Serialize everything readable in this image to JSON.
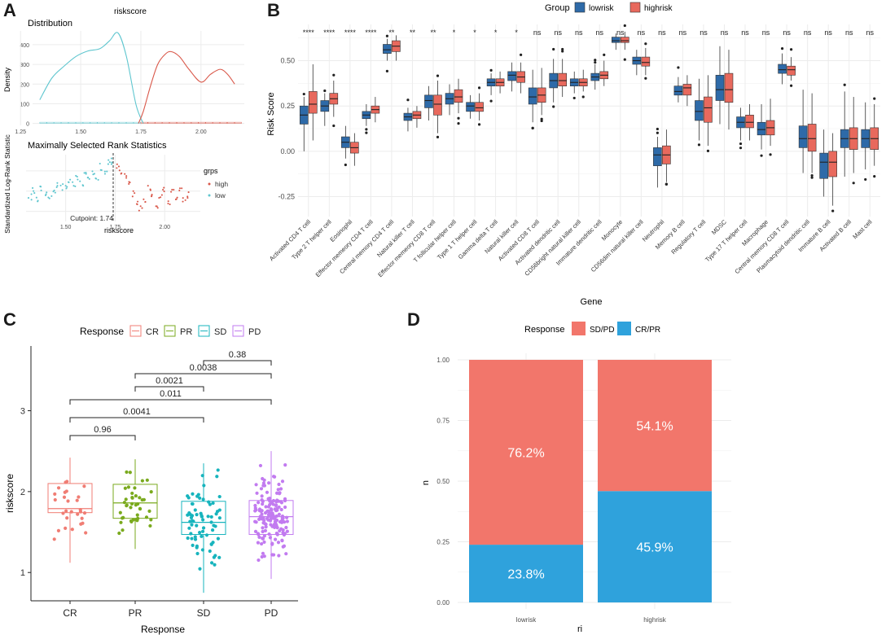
{
  "panels": {
    "a": "A",
    "b": "B",
    "c": "C",
    "d": "D"
  },
  "colors": {
    "low": "#2e6aa8",
    "high": "#e8695d",
    "dist_low": "#5fc6cf",
    "dist_high": "#d9584a",
    "cr": "#f07d74",
    "pr": "#7aaa1e",
    "sd": "#17b4bd",
    "pd": "#c27bf0",
    "sdpd": "#f2766b",
    "crpr": "#2fa2dc"
  },
  "chart_data": [
    {
      "id": "a_distribution",
      "type": "line",
      "title": "riskscore",
      "subtitle": "Distribution",
      "xlabel": "",
      "ylabel": "Density",
      "xlim": [
        1.3,
        2.18
      ],
      "ylim": [
        -10,
        470
      ],
      "xticks": [
        "1.25",
        "1.50",
        "1.75",
        "2.00"
      ],
      "xtick_values": [
        1.25,
        1.5,
        1.75,
        2.0
      ],
      "yticks": [
        "0",
        "100",
        "200",
        "300",
        "400"
      ],
      "ytick_values": [
        0,
        100,
        200,
        300,
        400
      ],
      "series": [
        {
          "name": "low",
          "x": [
            1.33,
            1.38,
            1.43,
            1.48,
            1.53,
            1.58,
            1.62,
            1.655,
            1.69,
            1.73,
            1.76
          ],
          "values": [
            120,
            230,
            290,
            340,
            368,
            380,
            420,
            460,
            340,
            95,
            0
          ]
        },
        {
          "name": "high",
          "x": [
            1.74,
            1.76,
            1.79,
            1.82,
            1.85,
            1.875,
            1.91,
            1.95,
            2.0,
            2.04,
            2.08,
            2.11,
            2.14
          ],
          "values": [
            0,
            60,
            190,
            300,
            350,
            365,
            340,
            275,
            210,
            250,
            275,
            250,
            200
          ]
        }
      ]
    },
    {
      "id": "a_maxstat",
      "type": "scatter",
      "title": "Maximally Selected Rank Statistics",
      "xlabel": "riskscore",
      "ylabel": "Standardized Log-Rank Statistic",
      "xlim": [
        1.3,
        2.18
      ],
      "ylim": [
        0,
        3.3
      ],
      "xticks": [
        "1.50",
        "1.75",
        "2.00"
      ],
      "xtick_values": [
        1.5,
        1.75,
        2.0
      ],
      "cutpoint": 1.74,
      "cutpoint_label": "Cutpoint: 1.74",
      "legend_title": "grps",
      "legend": [
        "high",
        "low"
      ],
      "series": [
        {
          "name": "low",
          "x": [
            1.32,
            1.34,
            1.36,
            1.38,
            1.4,
            1.42,
            1.44,
            1.46,
            1.48,
            1.5,
            1.52,
            1.54,
            1.56,
            1.58,
            1.6,
            1.62,
            1.64,
            1.66,
            1.68,
            1.7,
            1.72,
            1.74
          ],
          "values": [
            1.2,
            1.5,
            1.1,
            1.6,
            1.4,
            1.3,
            1.5,
            1.8,
            1.7,
            1.6,
            2.0,
            1.8,
            2.1,
            1.9,
            2.3,
            2.0,
            2.5,
            2.2,
            2.7,
            2.4,
            2.9,
            3.0
          ]
        },
        {
          "name": "high",
          "x": [
            1.76,
            1.78,
            1.8,
            1.82,
            1.84,
            1.86,
            1.88,
            1.9,
            1.92,
            1.94,
            1.96,
            1.98,
            2.0,
            2.02,
            2.04,
            2.06,
            2.08,
            2.1,
            2.12
          ],
          "values": [
            2.7,
            2.4,
            2.2,
            1.8,
            1.4,
            0.9,
            0.6,
            1.1,
            1.6,
            1.2,
            0.8,
            1.3,
            1.5,
            1.0,
            1.4,
            1.2,
            1.5,
            1.1,
            1.3
          ]
        }
      ]
    },
    {
      "id": "b_immune",
      "type": "boxplot",
      "legend_title": "Group",
      "groups": [
        "lowrisk",
        "highrisk"
      ],
      "xlabel": "Gene",
      "ylabel": "Risk Score",
      "ylim": [
        -0.36,
        0.7
      ],
      "yticks": [
        "-0.25",
        "0.00",
        "0.25",
        "0.50"
      ],
      "ytick_values": [
        -0.25,
        0,
        0.25,
        0.5
      ],
      "categories": [
        "Activated CD4 T cell",
        "Type 2 T helper cell",
        "Eosinophil",
        "Effector memeory CD4 T cell",
        "Central memory CD4 T cell",
        "Natural killer T cell",
        "Effector memeory CD8 T cell",
        "T follicular helper cell",
        "Type 1 T helper cell",
        "Gamma delta T cell",
        "Natural killer cell",
        "Activated CD8 T cell",
        "Activated dendritic cell",
        "CD56bright natural killer cell",
        "Immature dendritic cell",
        "Monocyte",
        "CD56dim natural killer cell",
        "Neutrophil",
        "Memory B cell",
        "Regulatory T cell",
        "MDSC",
        "Type 17 T helper cell",
        "Macrophage",
        "Central memory CD8 T cell",
        "Plasmacytoid dendritic cell",
        "Immature  B cell",
        "Activated B cell",
        "Mast cell"
      ],
      "significance": [
        "****",
        "****",
        "****",
        "****",
        "**",
        "**",
        "**",
        "*",
        "*",
        "*",
        "*",
        "ns",
        "ns",
        "ns",
        "ns",
        "ns",
        "ns",
        "ns",
        "ns",
        "ns",
        "ns",
        "ns",
        "ns",
        "ns",
        "ns",
        "ns",
        "ns",
        "ns"
      ],
      "series": [
        {
          "name": "lowrisk",
          "median": [
            0.2,
            0.25,
            0.05,
            0.2,
            0.56,
            0.19,
            0.28,
            0.29,
            0.25,
            0.38,
            0.42,
            0.3,
            0.39,
            0.38,
            0.41,
            0.61,
            0.5,
            -0.02,
            0.33,
            0.22,
            0.34,
            0.16,
            0.12,
            0.45,
            0.07,
            -0.06,
            0.07,
            0.07
          ],
          "q1": [
            0.15,
            0.22,
            0.02,
            0.18,
            0.54,
            0.17,
            0.24,
            0.26,
            0.22,
            0.36,
            0.39,
            0.26,
            0.35,
            0.36,
            0.39,
            0.6,
            0.48,
            -0.08,
            0.31,
            0.17,
            0.28,
            0.13,
            0.09,
            0.43,
            0.02,
            -0.15,
            0.02,
            0.02
          ],
          "q3": [
            0.25,
            0.28,
            0.08,
            0.22,
            0.59,
            0.21,
            0.31,
            0.32,
            0.27,
            0.4,
            0.44,
            0.35,
            0.43,
            0.4,
            0.43,
            0.63,
            0.52,
            0.02,
            0.36,
            0.28,
            0.42,
            0.19,
            0.16,
            0.48,
            0.14,
            -0.01,
            0.12,
            0.12
          ],
          "whisker_lo": [
            0.0,
            0.14,
            -0.04,
            0.14,
            0.5,
            0.11,
            0.17,
            0.2,
            0.18,
            0.31,
            0.33,
            0.16,
            0.27,
            0.32,
            0.34,
            0.56,
            0.42,
            -0.2,
            0.27,
            0.06,
            0.15,
            0.06,
            0.01,
            0.37,
            -0.12,
            -0.25,
            -0.14,
            -0.1
          ],
          "whisker_hi": [
            0.3,
            0.32,
            0.14,
            0.26,
            0.62,
            0.24,
            0.36,
            0.37,
            0.31,
            0.43,
            0.49,
            0.45,
            0.51,
            0.44,
            0.48,
            0.65,
            0.56,
            0.08,
            0.41,
            0.4,
            0.58,
            0.24,
            0.26,
            0.54,
            0.34,
            0.12,
            0.33,
            0.27
          ]
        },
        {
          "name": "highrisk",
          "median": [
            0.26,
            0.29,
            0.02,
            0.23,
            0.58,
            0.2,
            0.26,
            0.3,
            0.24,
            0.38,
            0.41,
            0.31,
            0.39,
            0.38,
            0.42,
            0.61,
            0.49,
            -0.02,
            0.35,
            0.24,
            0.34,
            0.16,
            0.13,
            0.45,
            0.07,
            -0.06,
            0.07,
            0.07
          ],
          "q1": [
            0.21,
            0.26,
            -0.01,
            0.21,
            0.55,
            0.18,
            0.2,
            0.27,
            0.22,
            0.36,
            0.38,
            0.27,
            0.36,
            0.36,
            0.4,
            0.6,
            0.47,
            -0.07,
            0.31,
            0.16,
            0.27,
            0.13,
            0.09,
            0.42,
            0.0,
            -0.14,
            0.01,
            0.01
          ],
          "q3": [
            0.33,
            0.32,
            0.05,
            0.25,
            0.61,
            0.22,
            0.31,
            0.34,
            0.27,
            0.4,
            0.44,
            0.35,
            0.43,
            0.4,
            0.44,
            0.63,
            0.52,
            0.03,
            0.37,
            0.3,
            0.43,
            0.2,
            0.17,
            0.47,
            0.15,
            0.0,
            0.13,
            0.13
          ],
          "whisker_lo": [
            0.06,
            0.19,
            -0.08,
            0.16,
            0.5,
            0.13,
            0.1,
            0.21,
            0.17,
            0.32,
            0.32,
            0.2,
            0.3,
            0.33,
            0.36,
            0.56,
            0.42,
            -0.17,
            0.25,
            0.03,
            0.12,
            0.06,
            0.03,
            0.39,
            -0.12,
            -0.3,
            -0.12,
            -0.08
          ],
          "whisker_hi": [
            0.48,
            0.39,
            0.1,
            0.3,
            0.64,
            0.25,
            0.39,
            0.4,
            0.32,
            0.44,
            0.49,
            0.46,
            0.51,
            0.45,
            0.5,
            0.66,
            0.57,
            0.12,
            0.42,
            0.42,
            0.56,
            0.26,
            0.29,
            0.52,
            0.32,
            0.1,
            0.3,
            0.26
          ]
        }
      ]
    },
    {
      "id": "c_response",
      "type": "boxplot",
      "legend_title": "Response",
      "categories": [
        "CR",
        "PR",
        "SD",
        "PD"
      ],
      "xlabel": "Response",
      "ylabel": "riskscore",
      "ylim": [
        0.65,
        3.8
      ],
      "yticks": [
        "1",
        "2",
        "3"
      ],
      "ytick_values": [
        1,
        2,
        3
      ],
      "median": [
        1.79,
        1.86,
        1.62,
        1.69
      ],
      "q1": [
        1.74,
        1.67,
        1.47,
        1.47
      ],
      "q3": [
        2.1,
        2.09,
        1.88,
        1.89
      ],
      "whisker_lo": [
        1.12,
        1.29,
        0.75,
        0.92
      ],
      "whisker_hi": [
        2.42,
        2.4,
        2.35,
        2.5
      ],
      "point_counts": [
        28,
        42,
        70,
        160
      ],
      "comparisons": [
        {
          "from": "PD",
          "to": "SD",
          "label": "0.38"
        },
        {
          "from": "PD",
          "to": "PR",
          "label": "0.0038"
        },
        {
          "from": "SD",
          "to": "PR",
          "label": "0.0021"
        },
        {
          "from": "PD",
          "to": "CR",
          "label": "0.011"
        },
        {
          "from": "SD",
          "to": "CR",
          "label": "0.0041"
        },
        {
          "from": "PR",
          "to": "CR",
          "label": "0.96"
        }
      ]
    },
    {
      "id": "d_stacked",
      "type": "bar",
      "stacked": true,
      "legend_title": "Response",
      "legend": [
        "SD/PD",
        "CR/PR"
      ],
      "categories": [
        "lowrisk",
        "highrisk"
      ],
      "xlabel": "ri",
      "ylabel": "n",
      "ylim": [
        0,
        1
      ],
      "yticks": [
        "0.00",
        "0.25",
        "0.50",
        "0.75",
        "1.00"
      ],
      "ytick_values": [
        0,
        0.25,
        0.5,
        0.75,
        1.0
      ],
      "series": [
        {
          "name": "CR/PR",
          "values": [
            0.238,
            0.459
          ],
          "labels": [
            "23.8%",
            "45.9%"
          ]
        },
        {
          "name": "SD/PD",
          "values": [
            0.762,
            0.541
          ],
          "labels": [
            "76.2%",
            "54.1%"
          ]
        }
      ]
    }
  ]
}
